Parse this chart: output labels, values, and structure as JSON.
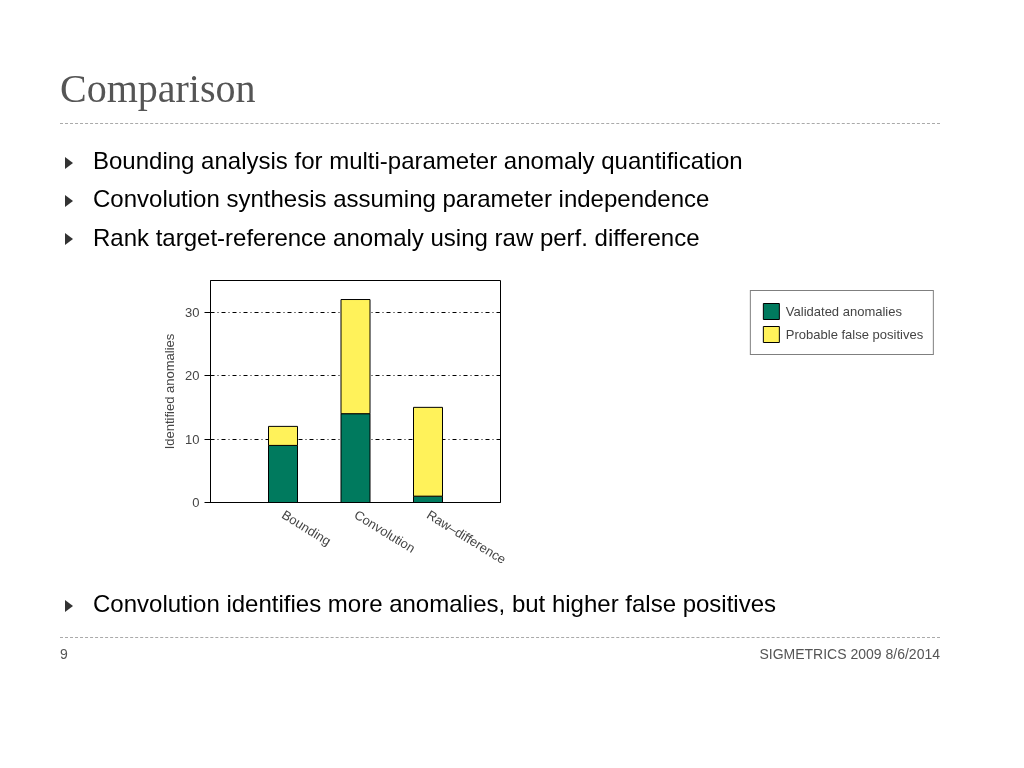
{
  "chart_data": {
    "type": "bar",
    "stacked": true,
    "title": "Comparison",
    "ylabel": "Identified anomalies",
    "categories": [
      "Bounding",
      "Convolution",
      "Raw–difference"
    ],
    "series": [
      {
        "name": "Validated anomalies",
        "color": "#007a5e",
        "values": [
          9,
          14,
          1
        ]
      },
      {
        "name": "Probable false positives",
        "color": "#fff25a",
        "values": [
          3,
          18,
          14
        ]
      }
    ],
    "ylim": [
      0,
      35
    ],
    "yticks": [
      0,
      10,
      20,
      30
    ],
    "grid": "y",
    "legend": "right",
    "annotations": [
      "Bounding analysis for multi-parameter anomaly quantification",
      "Convolution synthesis assuming parameter independence",
      "Rank target-reference anomaly using raw perf. difference",
      "Convolution identifies more anomalies, but higher false positives",
      "9",
      "SIGMETRICS 2009   8/6/2014"
    ]
  }
}
